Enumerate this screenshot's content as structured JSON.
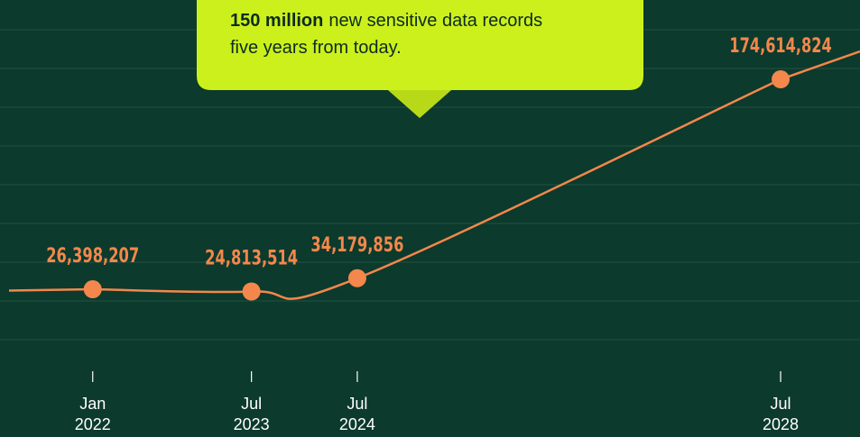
{
  "chart_data": {
    "type": "line",
    "annotation": [
      "150 million",
      "new sensitive data records",
      "five years from today."
    ],
    "x": [
      "2022-01",
      "2023-07",
      "2024-07",
      "2028-07"
    ],
    "series": [
      {
        "color": "#f4874b",
        "values": [
          26398207,
          24813514,
          34179856,
          174614824
        ],
        "value_labels": [
          "26,398,207",
          "24,813,514",
          "34,179,856",
          "174,614,824"
        ]
      }
    ],
    "xlim": [
      "2021-03",
      "2029-04"
    ],
    "xticks": [
      {
        "value": "2022-01",
        "label": [
          "Jan",
          "2022"
        ]
      },
      {
        "value": "2023-07",
        "label": [
          "Jul",
          "2023"
        ]
      },
      {
        "value": "2024-07",
        "label": [
          "Jul",
          "2024"
        ]
      },
      {
        "value": "2028-07",
        "label": [
          "Jul",
          "2028"
        ]
      }
    ],
    "ylim": [
      0,
      230000000
    ]
  }
}
